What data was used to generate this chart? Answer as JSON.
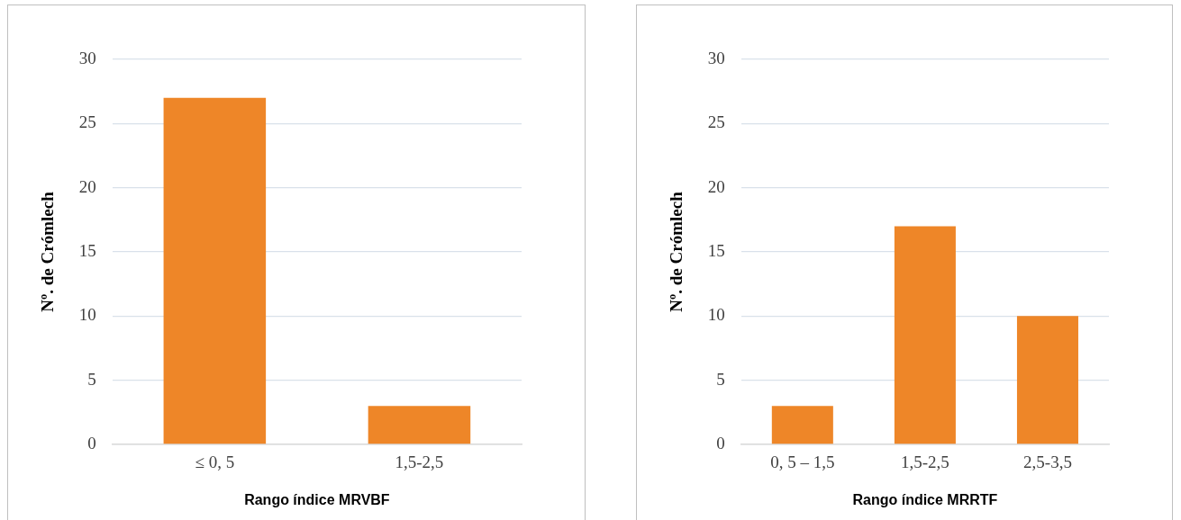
{
  "chart_data": [
    {
      "type": "bar",
      "categories": [
        "≤ 0, 5",
        "1,5-2,5"
      ],
      "values": [
        27,
        3
      ],
      "color": "#ee8628",
      "ylim": [
        0,
        30
      ],
      "yticks": [
        0,
        5,
        10,
        15,
        20,
        25,
        30
      ],
      "grid": "y",
      "legend": false,
      "ylabel": "Nº. de Crómlech",
      "xlabel": "Rango índice MRVBF"
    },
    {
      "type": "bar",
      "categories": [
        "0, 5 – 1,5",
        "1,5-2,5",
        "2,5-3,5"
      ],
      "values": [
        3,
        17,
        10
      ],
      "color": "#ee8628",
      "ylim": [
        0,
        30
      ],
      "yticks": [
        0,
        5,
        10,
        15,
        20,
        25,
        30
      ],
      "grid": "y",
      "legend": false,
      "ylabel": "Nº. de Crómlech",
      "xlabel": "Rango índice MRRTF"
    }
  ]
}
